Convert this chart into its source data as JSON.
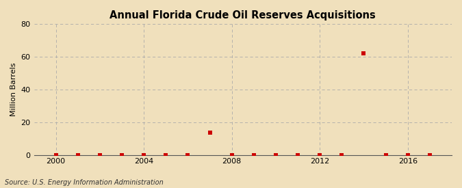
{
  "title": "Annual Florida Crude Oil Reserves Acquisitions",
  "ylabel": "Million Barrels",
  "source": "Source: U.S. Energy Information Administration",
  "background_color": "#f0e0bc",
  "plot_bg_color": "#f0e0bc",
  "marker_color": "#cc0000",
  "marker_style": "s",
  "marker_size": 5,
  "xlim": [
    1999,
    2018
  ],
  "ylim": [
    0,
    80
  ],
  "yticks": [
    0,
    20,
    40,
    60,
    80
  ],
  "xticks": [
    2000,
    2004,
    2008,
    2012,
    2016
  ],
  "grid_color": "#aaaaaa",
  "data": {
    "years": [
      2000,
      2001,
      2002,
      2003,
      2004,
      2005,
      2006,
      2007,
      2008,
      2009,
      2010,
      2011,
      2012,
      2013,
      2014,
      2015,
      2016,
      2017
    ],
    "values": [
      0.0,
      0.0,
      0.0,
      0.0,
      0.0,
      0.0,
      0.0,
      13.5,
      0.0,
      0.0,
      0.0,
      0.0,
      0.0,
      0.0,
      62.0,
      0.0,
      0.0,
      0.0
    ]
  }
}
